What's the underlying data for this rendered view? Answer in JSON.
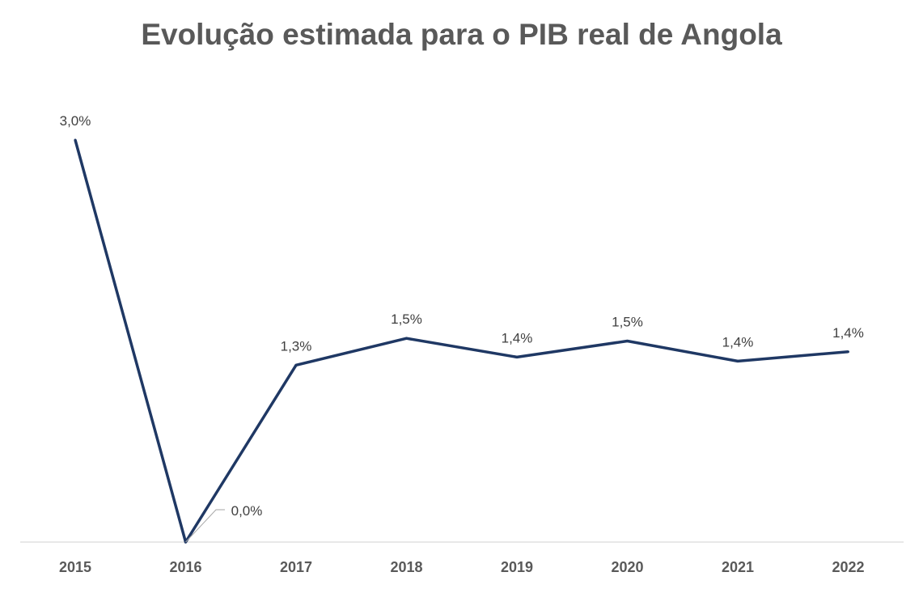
{
  "chart_data": {
    "type": "line",
    "title": "Evolução estimada para o PIB real de Angola",
    "categories": [
      "2015",
      "2016",
      "2017",
      "2018",
      "2019",
      "2020",
      "2021",
      "2022"
    ],
    "series": [
      {
        "values": [
          3.0,
          0.0,
          1.32,
          1.52,
          1.38,
          1.5,
          1.35,
          1.42
        ],
        "labels": [
          "3,0%",
          "0,0%",
          "1,3%",
          "1,5%",
          "1,4%",
          "1,5%",
          "1,4%",
          "1,4%"
        ],
        "color": "#1f3864"
      }
    ],
    "xlabel": "",
    "ylabel": "",
    "ylim": [
      0,
      3.0
    ],
    "grid": false,
    "legend": "none",
    "axis_color": "#d9d9d9"
  }
}
